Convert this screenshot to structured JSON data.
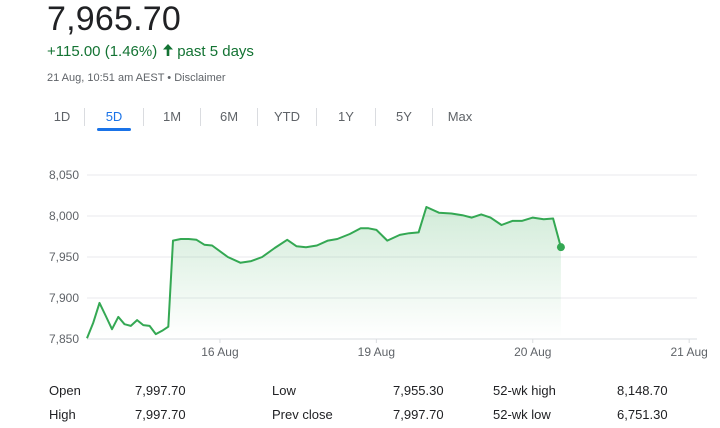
{
  "header": {
    "price": "7,965.70",
    "change": "+115.00 (1.46%)",
    "period": "past 5 days",
    "timestamp": "21 Aug, 10:51 am AEST",
    "separator": "•",
    "disclaimer": "Disclaimer"
  },
  "tabs": [
    {
      "label": "1D",
      "active": false
    },
    {
      "label": "5D",
      "active": true
    },
    {
      "label": "1M",
      "active": false
    },
    {
      "label": "6M",
      "active": false
    },
    {
      "label": "YTD",
      "active": false
    },
    {
      "label": "1Y",
      "active": false
    },
    {
      "label": "5Y",
      "active": false
    },
    {
      "label": "Max",
      "active": false
    }
  ],
  "chart_data": {
    "type": "line",
    "ylim": [
      7850,
      8050
    ],
    "yticks": [
      7850,
      7900,
      7950,
      8000,
      8050
    ],
    "ytick_labels": [
      "7,850",
      "7,900",
      "7,950",
      "8,000",
      "8,050"
    ],
    "xticks": [
      {
        "label": "16 Aug",
        "x": 18.15
      },
      {
        "label": "19 Aug",
        "x": 19.15
      },
      {
        "label": "20 Aug",
        "x": 20.15
      },
      {
        "label": "21 Aug",
        "x": 21.15
      }
    ],
    "xlim": [
      17.3,
      21.2
    ],
    "series": [
      {
        "color": "#34a853",
        "points": [
          [
            17.3,
            7851
          ],
          [
            17.34,
            7870
          ],
          [
            17.38,
            7894
          ],
          [
            17.42,
            7878
          ],
          [
            17.46,
            7862
          ],
          [
            17.5,
            7877
          ],
          [
            17.54,
            7868
          ],
          [
            17.58,
            7866
          ],
          [
            17.62,
            7873
          ],
          [
            17.66,
            7867
          ],
          [
            17.7,
            7866
          ],
          [
            17.74,
            7856
          ],
          [
            17.78,
            7860
          ],
          [
            17.82,
            7865
          ],
          [
            17.85,
            7970
          ],
          [
            17.9,
            7972
          ],
          [
            17.95,
            7972
          ],
          [
            18.0,
            7971
          ],
          [
            18.05,
            7965
          ],
          [
            18.1,
            7964
          ],
          [
            18.2,
            7950
          ],
          [
            18.28,
            7943
          ],
          [
            18.35,
            7945
          ],
          [
            18.42,
            7950
          ],
          [
            18.5,
            7961
          ],
          [
            18.58,
            7971
          ],
          [
            18.64,
            7963
          ],
          [
            18.7,
            7962
          ],
          [
            18.77,
            7964
          ],
          [
            18.84,
            7970
          ],
          [
            18.9,
            7972
          ],
          [
            18.98,
            7978
          ],
          [
            19.05,
            7985
          ],
          [
            19.1,
            7985
          ],
          [
            19.15,
            7983
          ],
          [
            19.22,
            7970
          ],
          [
            19.3,
            7977
          ],
          [
            19.36,
            7979
          ],
          [
            19.42,
            7980
          ],
          [
            19.47,
            8011
          ],
          [
            19.55,
            8004
          ],
          [
            19.63,
            8003
          ],
          [
            19.7,
            8001
          ],
          [
            19.76,
            7998
          ],
          [
            19.82,
            8002
          ],
          [
            19.88,
            7998
          ],
          [
            19.95,
            7989
          ],
          [
            20.02,
            7994
          ],
          [
            20.08,
            7994
          ],
          [
            20.15,
            7998
          ],
          [
            20.22,
            7996
          ],
          [
            20.28,
            7997
          ],
          [
            20.33,
            7962
          ]
        ]
      }
    ],
    "last_value": 7965.7
  },
  "stats": {
    "open_label": "Open",
    "open_value": "7,997.70",
    "high_label": "High",
    "high_value": "7,997.70",
    "low_label": "Low",
    "low_value": "7,955.30",
    "prev_close_label": "Prev close",
    "prev_close_value": "7,997.70",
    "wk52_high_label": "52-wk high",
    "wk52_high_value": "8,148.70",
    "wk52_low_label": "52-wk low",
    "wk52_low_value": "6,751.30"
  },
  "colors": {
    "positive": "#137333",
    "line": "#34a853",
    "accent": "#1a73e8",
    "grid": "#e8eaed",
    "axis_text": "#5f6368"
  }
}
